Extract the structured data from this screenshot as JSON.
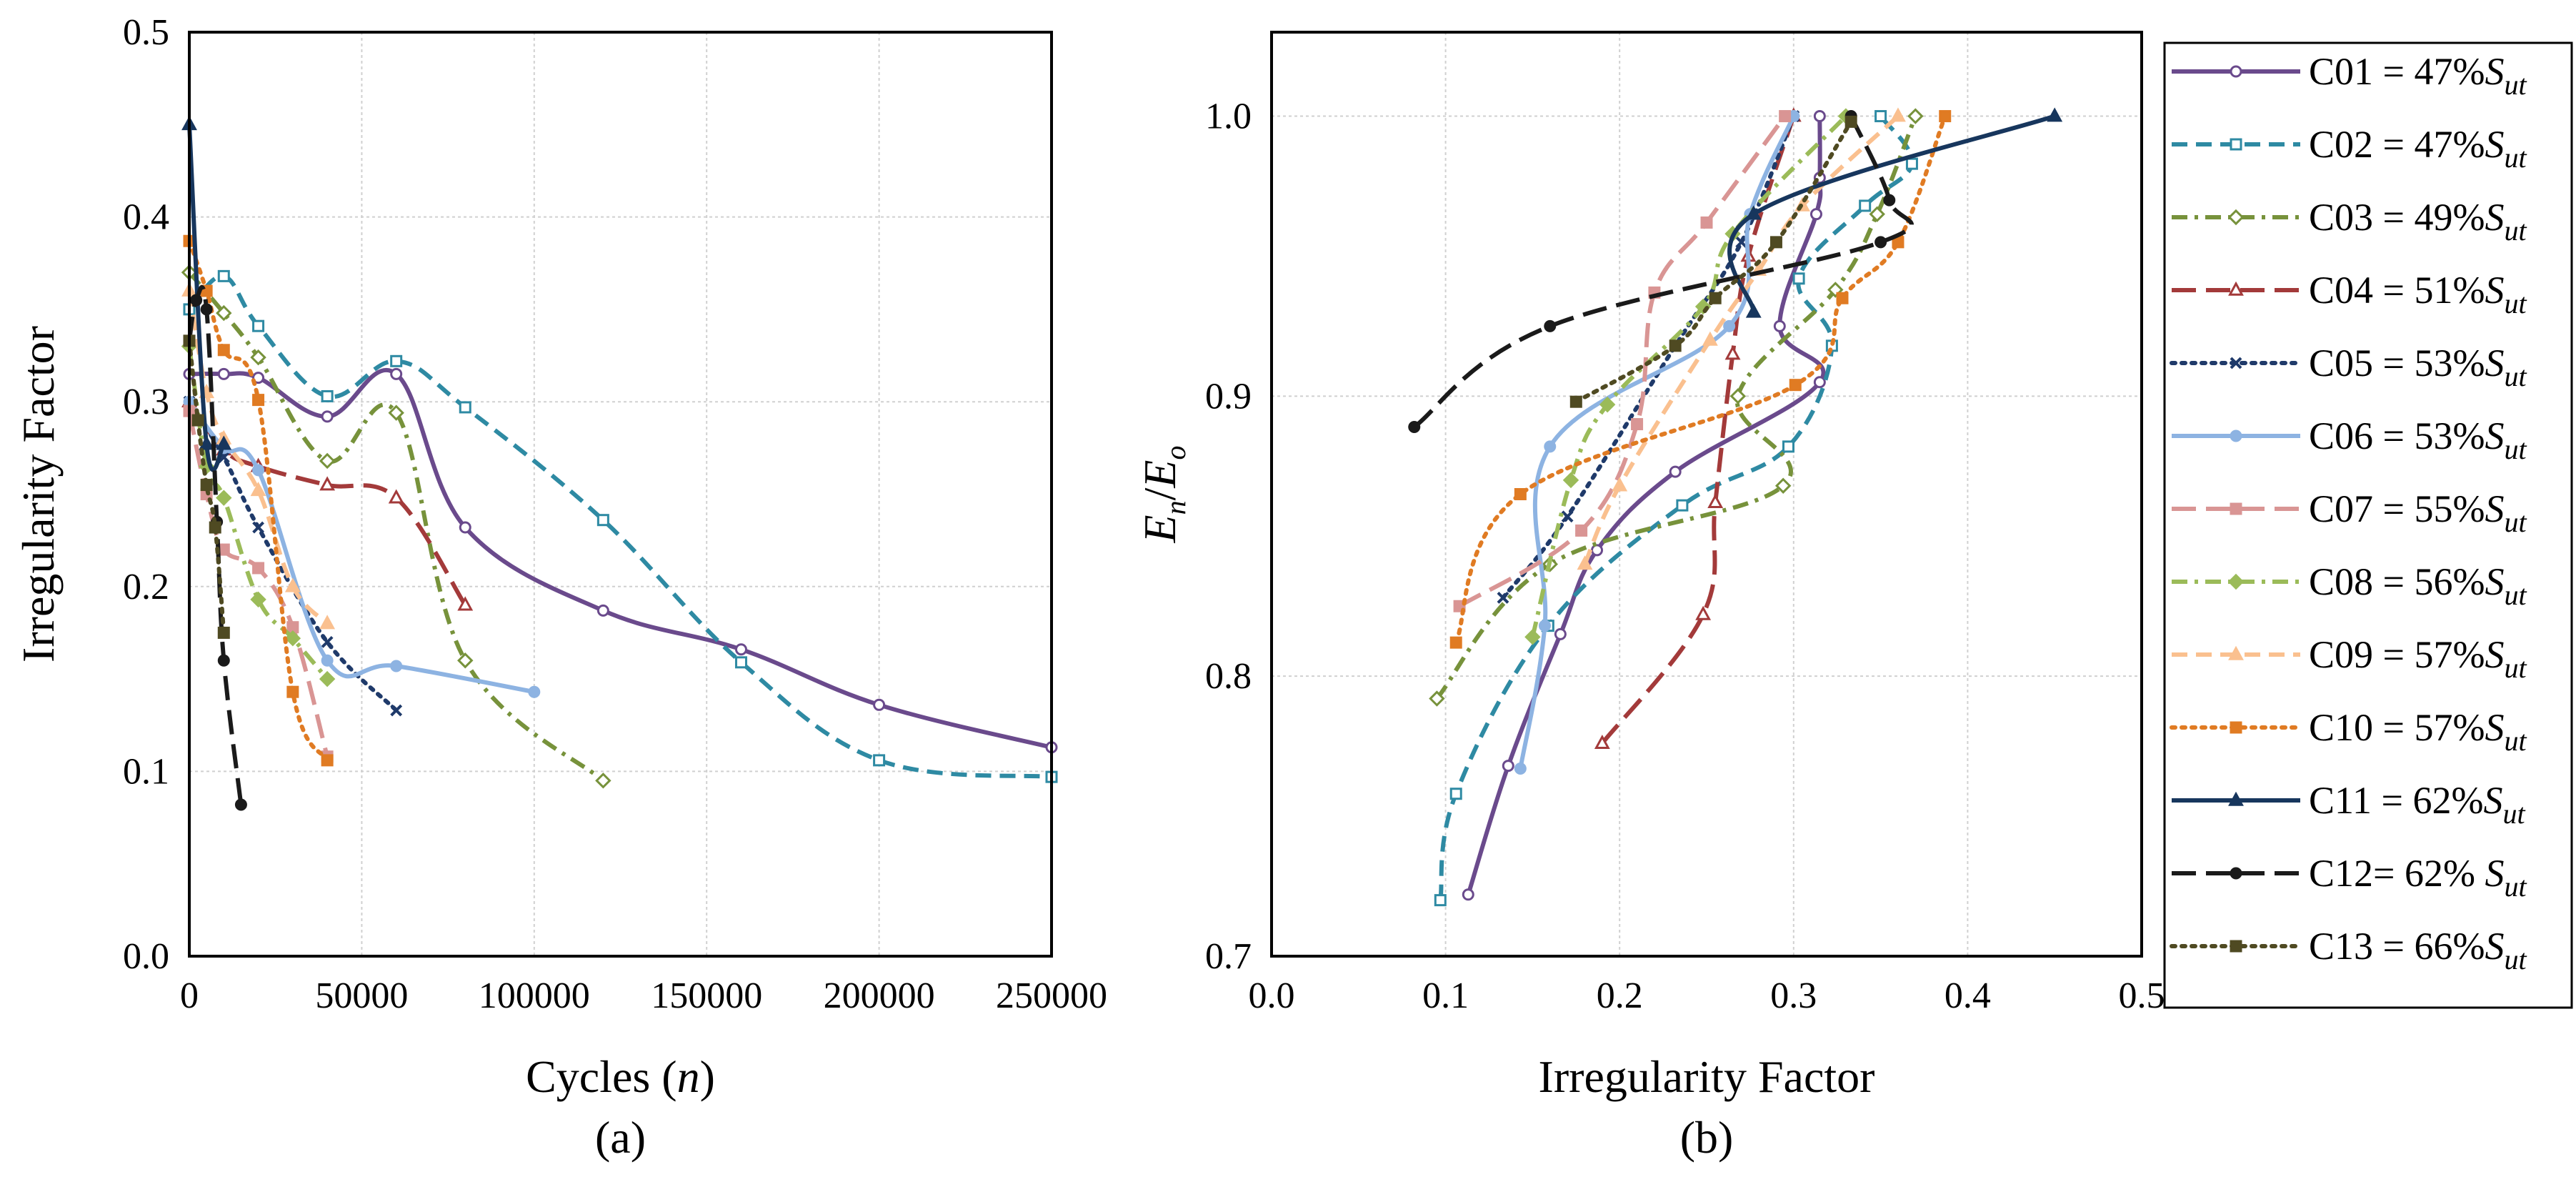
{
  "chart_data": [
    {
      "type": "line",
      "panel_label": "(a)",
      "xlabel": "Cycles",
      "xlabel_var": "n",
      "ylabel": "Irregularity Factor",
      "xlim": [
        0,
        250000
      ],
      "ylim": [
        0,
        0.5
      ],
      "xticks": [
        "0",
        "50000",
        "100000",
        "150000",
        "200000",
        "250000"
      ],
      "yticks": [
        "0.0",
        "0.1",
        "0.2",
        "0.3",
        "0.4",
        "0.5"
      ],
      "grid": true,
      "series": [
        {
          "name": "C01",
          "x": [
            0,
            10000,
            20000,
            40000,
            60000,
            80000,
            120000,
            160000,
            200000,
            250000
          ],
          "y": [
            0.315,
            0.315,
            0.313,
            0.292,
            0.315,
            0.232,
            0.187,
            0.166,
            0.136,
            0.113
          ]
        },
        {
          "name": "C02",
          "x": [
            0,
            10000,
            20000,
            40000,
            60000,
            80000,
            120000,
            160000,
            200000,
            250000
          ],
          "y": [
            0.35,
            0.368,
            0.341,
            0.303,
            0.322,
            0.297,
            0.236,
            0.159,
            0.106,
            0.097
          ]
        },
        {
          "name": "C03",
          "x": [
            0,
            10000,
            20000,
            40000,
            60000,
            80000,
            120000
          ],
          "y": [
            0.37,
            0.348,
            0.324,
            0.268,
            0.294,
            0.16,
            0.095
          ]
        },
        {
          "name": "C04",
          "x": [
            0,
            10000,
            20000,
            40000,
            60000,
            80000
          ],
          "y": [
            0.3,
            0.274,
            0.265,
            0.255,
            0.248,
            0.19
          ]
        },
        {
          "name": "C05",
          "x": [
            0,
            10000,
            20000,
            40000,
            60000
          ],
          "y": [
            0.3,
            0.27,
            0.232,
            0.17,
            0.133
          ]
        },
        {
          "name": "C06",
          "x": [
            0,
            10000,
            20000,
            40000,
            60000,
            100000
          ],
          "y": [
            0.3,
            0.275,
            0.263,
            0.16,
            0.157,
            0.143
          ]
        },
        {
          "name": "C07",
          "x": [
            0,
            5000,
            10000,
            20000,
            30000,
            40000
          ],
          "y": [
            0.295,
            0.25,
            0.22,
            0.21,
            0.178,
            0.108
          ]
        },
        {
          "name": "C08",
          "x": [
            0,
            5000,
            10000,
            20000,
            30000,
            40000
          ],
          "y": [
            0.33,
            0.265,
            0.248,
            0.193,
            0.172,
            0.15
          ]
        },
        {
          "name": "C09",
          "x": [
            0,
            5000,
            10000,
            20000,
            30000,
            40000
          ],
          "y": [
            0.36,
            0.305,
            0.28,
            0.252,
            0.2,
            0.18
          ]
        },
        {
          "name": "C10",
          "x": [
            0,
            5000,
            10000,
            20000,
            30000,
            40000
          ],
          "y": [
            0.387,
            0.36,
            0.328,
            0.301,
            0.143,
            0.106
          ]
        },
        {
          "name": "C11",
          "x": [
            0,
            5000,
            10000
          ],
          "y": [
            0.45,
            0.277,
            0.277
          ]
        },
        {
          "name": "C12",
          "x": [
            0,
            2000,
            5000,
            8000,
            10000,
            15000
          ],
          "y": [
            0.333,
            0.355,
            0.35,
            0.235,
            0.16,
            0.082
          ]
        },
        {
          "name": "C13",
          "x": [
            0,
            2500,
            5000,
            7500,
            10000
          ],
          "y": [
            0.333,
            0.29,
            0.255,
            0.232,
            0.175
          ]
        }
      ]
    },
    {
      "type": "line",
      "panel_label": "(b)",
      "xlabel": "Irregularity Factor",
      "ylabel_main": "E",
      "ylabel_sub": "n",
      "ylabel_den_main": "E",
      "ylabel_den_sub": "o",
      "xlim": [
        0,
        0.5
      ],
      "ylim": [
        0.7,
        1.03
      ],
      "xticks": [
        "0.0",
        "0.1",
        "0.2",
        "0.3",
        "0.4",
        "0.5"
      ],
      "yticks": [
        "0.7",
        "0.8",
        "0.9",
        "1.0"
      ],
      "grid": true,
      "series": [
        {
          "name": "C01",
          "x": [
            0.113,
            0.136,
            0.166,
            0.187,
            0.232,
            0.315,
            0.292,
            0.313,
            0.315,
            0.315
          ],
          "y": [
            0.722,
            0.768,
            0.815,
            0.845,
            0.873,
            0.905,
            0.925,
            0.965,
            0.978,
            1.0
          ]
        },
        {
          "name": "C02",
          "x": [
            0.097,
            0.106,
            0.159,
            0.236,
            0.297,
            0.322,
            0.303,
            0.341,
            0.368,
            0.35
          ],
          "y": [
            0.72,
            0.758,
            0.818,
            0.861,
            0.882,
            0.918,
            0.942,
            0.968,
            0.983,
            1.0
          ]
        },
        {
          "name": "C03",
          "x": [
            0.095,
            0.16,
            0.294,
            0.268,
            0.324,
            0.348,
            0.37
          ],
          "y": [
            0.792,
            0.84,
            0.868,
            0.9,
            0.938,
            0.965,
            1.0
          ]
        },
        {
          "name": "C04",
          "x": [
            0.19,
            0.248,
            0.255,
            0.265,
            0.274,
            0.3
          ],
          "y": [
            0.776,
            0.822,
            0.862,
            0.915,
            0.95,
            1.0
          ]
        },
        {
          "name": "C05",
          "x": [
            0.133,
            0.17,
            0.232,
            0.27,
            0.3
          ],
          "y": [
            0.828,
            0.857,
            0.918,
            0.955,
            1.0
          ]
        },
        {
          "name": "C06",
          "x": [
            0.143,
            0.157,
            0.16,
            0.263,
            0.275,
            0.3
          ],
          "y": [
            0.767,
            0.818,
            0.882,
            0.925,
            0.965,
            1.0
          ]
        },
        {
          "name": "C07",
          "x": [
            0.108,
            0.178,
            0.21,
            0.22,
            0.25,
            0.295
          ],
          "y": [
            0.825,
            0.852,
            0.89,
            0.937,
            0.962,
            1.0
          ]
        },
        {
          "name": "C08",
          "x": [
            0.15,
            0.172,
            0.193,
            0.248,
            0.265,
            0.33
          ],
          "y": [
            0.814,
            0.87,
            0.897,
            0.932,
            0.958,
            1.0
          ]
        },
        {
          "name": "C09",
          "x": [
            0.18,
            0.2,
            0.252,
            0.28,
            0.305,
            0.36
          ],
          "y": [
            0.84,
            0.868,
            0.92,
            0.945,
            0.968,
            1.0
          ]
        },
        {
          "name": "C10",
          "x": [
            0.106,
            0.143,
            0.301,
            0.328,
            0.36,
            0.387
          ],
          "y": [
            0.812,
            0.865,
            0.904,
            0.935,
            0.955,
            1.0
          ]
        },
        {
          "name": "C11",
          "x": [
            0.277,
            0.277,
            0.45
          ],
          "y": [
            0.93,
            0.965,
            1.0
          ]
        },
        {
          "name": "C12",
          "x": [
            0.082,
            0.16,
            0.35,
            0.355,
            0.333
          ],
          "y": [
            0.889,
            0.925,
            0.955,
            0.97,
            1.0
          ]
        },
        {
          "name": "C13",
          "x": [
            0.175,
            0.232,
            0.255,
            0.29,
            0.333
          ],
          "y": [
            0.898,
            0.918,
            0.935,
            0.955,
            0.998
          ]
        }
      ]
    }
  ],
  "legend": [
    {
      "series": "C01",
      "prefix": "C01 = 47%",
      "var": "S",
      "sub": "ut",
      "color": "#6a4a8c",
      "dash": "solid",
      "marker": "circle-open"
    },
    {
      "series": "C02",
      "prefix": "C02 = 47%",
      "var": "S",
      "sub": "ut",
      "color": "#2e8aa3",
      "dash": "dash",
      "marker": "square-open"
    },
    {
      "series": "C03",
      "prefix": "C03 = 49%",
      "var": "S",
      "sub": "ut",
      "color": "#77923b",
      "dash": "dashdot",
      "marker": "diamond-open"
    },
    {
      "series": "C04",
      "prefix": "C04 = 51%",
      "var": "S",
      "sub": "ut",
      "color": "#a33a3a",
      "dash": "longdash",
      "marker": "triangle-open"
    },
    {
      "series": "C05",
      "prefix": "C05 = 53%",
      "var": "S",
      "sub": "ut",
      "color": "#1f3a6a",
      "dash": "dot",
      "marker": "x"
    },
    {
      "series": "C06",
      "prefix": "C06 = 53%",
      "var": "S",
      "sub": "ut",
      "color": "#8db3e2",
      "dash": "solid",
      "marker": "circle"
    },
    {
      "series": "C07",
      "prefix": "C07 = 55%",
      "var": "S",
      "sub": "ut",
      "color": "#d99594",
      "dash": "longdash",
      "marker": "square"
    },
    {
      "series": "C08",
      "prefix": "C08 = 56%",
      "var": "S",
      "sub": "ut",
      "color": "#9bbb59",
      "dash": "dashdot",
      "marker": "diamond"
    },
    {
      "series": "C09",
      "prefix": "C09 = 57%",
      "var": "S",
      "sub": "ut",
      "color": "#fac08f",
      "dash": "dash",
      "marker": "triangle"
    },
    {
      "series": "C10",
      "prefix": "C10 = 57%",
      "var": "S",
      "sub": "ut",
      "color": "#e07b23",
      "dash": "dot",
      "marker": "square"
    },
    {
      "series": "C11",
      "prefix": "C11 = 62%",
      "var": "S",
      "sub": "ut",
      "color": "#17365d",
      "dash": "solid",
      "marker": "triangle"
    },
    {
      "series": "C12",
      "prefix": "C12= 62% ",
      "var": "S",
      "sub": "ut",
      "color": "#1a1a1a",
      "dash": "longdash",
      "marker": "circle"
    },
    {
      "series": "C13",
      "prefix": "C13 = 66%",
      "var": "S",
      "sub": "ut",
      "color": "#4f4a22",
      "dash": "dot",
      "marker": "square"
    }
  ]
}
